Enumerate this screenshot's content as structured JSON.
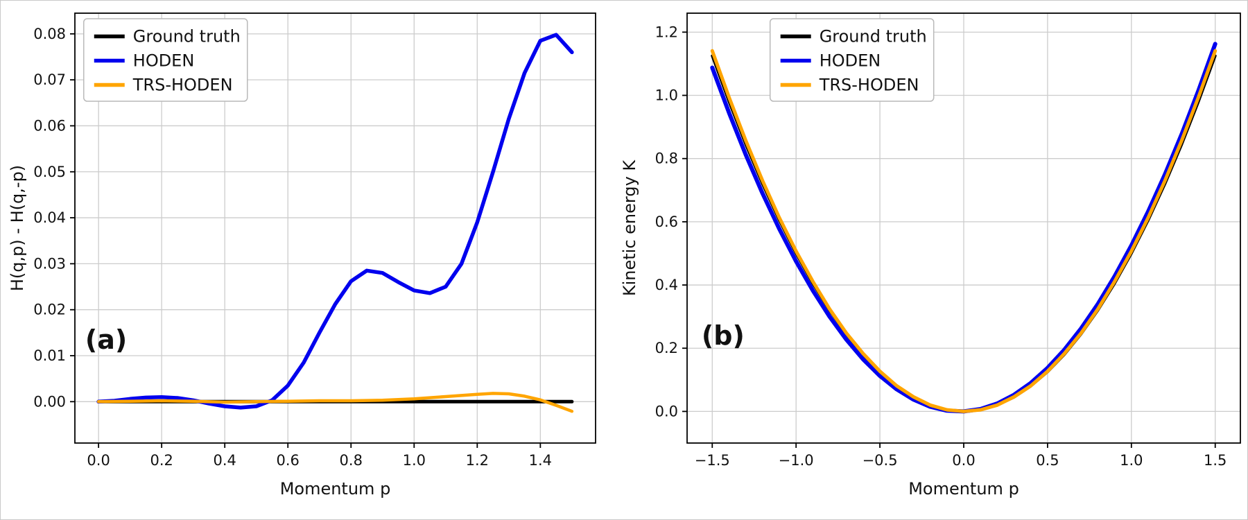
{
  "figure": {
    "background": "#ffffff",
    "grid_color": "#cccccc",
    "axes_color": "#000000",
    "legend_border_color": "#b9b9b9",
    "accent_colors": {
      "ground_truth": "#000000",
      "hoden": "#0000ee",
      "trs_hoden": "#ffa500"
    }
  },
  "chart_data": [
    {
      "type": "line",
      "name": "panel-a",
      "panel_label": "(a)",
      "xlabel": "Momentum p",
      "ylabel": "H(q,p) - H(q,-p)",
      "xlim": [
        -0.075,
        1.575
      ],
      "ylim": [
        -0.009,
        0.0845
      ],
      "xticks": [
        0.0,
        0.2,
        0.4,
        0.6,
        0.8,
        1.0,
        1.2,
        1.4
      ],
      "xtick_labels": [
        "0.0",
        "0.2",
        "0.4",
        "0.6",
        "0.8",
        "1.0",
        "1.2",
        "1.4"
      ],
      "yticks": [
        0.0,
        0.01,
        0.02,
        0.03,
        0.04,
        0.05,
        0.06,
        0.07,
        0.08
      ],
      "ytick_labels": [
        "0.00",
        "0.01",
        "0.02",
        "0.03",
        "0.04",
        "0.05",
        "0.06",
        "0.07",
        "0.08"
      ],
      "grid": true,
      "legend": {
        "position": "upper-left",
        "x_frac": 0.017,
        "y_offset": 8
      },
      "panel_label_pos": {
        "x_frac": 0.06,
        "y_frac_from_top": 0.76
      },
      "series": [
        {
          "name": "Ground truth",
          "color": "#000000",
          "width": 5,
          "points": [
            [
              0.0,
              0.0
            ],
            [
              1.5,
              0.0
            ]
          ]
        },
        {
          "name": "HODEN",
          "color": "#0000ee",
          "width": 5.5,
          "points": [
            [
              0.0,
              0.0
            ],
            [
              0.05,
              0.0002
            ],
            [
              0.1,
              0.0006
            ],
            [
              0.15,
              0.0009
            ],
            [
              0.2,
              0.001
            ],
            [
              0.25,
              0.0008
            ],
            [
              0.3,
              0.0003
            ],
            [
              0.35,
              -0.0004
            ],
            [
              0.4,
              -0.001
            ],
            [
              0.45,
              -0.0013
            ],
            [
              0.5,
              -0.001
            ],
            [
              0.55,
              0.0003
            ],
            [
              0.6,
              0.0035
            ],
            [
              0.65,
              0.0085
            ],
            [
              0.7,
              0.015
            ],
            [
              0.75,
              0.0212
            ],
            [
              0.8,
              0.0262
            ],
            [
              0.85,
              0.0285
            ],
            [
              0.9,
              0.028
            ],
            [
              0.95,
              0.026
            ],
            [
              1.0,
              0.0242
            ],
            [
              1.05,
              0.0236
            ],
            [
              1.1,
              0.025
            ],
            [
              1.15,
              0.03
            ],
            [
              1.2,
              0.039
            ],
            [
              1.25,
              0.05
            ],
            [
              1.3,
              0.0615
            ],
            [
              1.35,
              0.0715
            ],
            [
              1.4,
              0.0785
            ],
            [
              1.45,
              0.0798
            ],
            [
              1.5,
              0.076
            ]
          ]
        },
        {
          "name": "TRS-HODEN",
          "color": "#ffa500",
          "width": 4.5,
          "points": [
            [
              0.0,
              0.0
            ],
            [
              0.1,
              0.0001
            ],
            [
              0.2,
              0.0002
            ],
            [
              0.3,
              0.0001
            ],
            [
              0.4,
              -0.0001
            ],
            [
              0.5,
              0.0
            ],
            [
              0.6,
              0.0001
            ],
            [
              0.7,
              0.0002
            ],
            [
              0.8,
              0.0002
            ],
            [
              0.9,
              0.0003
            ],
            [
              1.0,
              0.0006
            ],
            [
              1.1,
              0.0011
            ],
            [
              1.2,
              0.0016
            ],
            [
              1.25,
              0.0018
            ],
            [
              1.3,
              0.0017
            ],
            [
              1.35,
              0.0012
            ],
            [
              1.4,
              0.0004
            ],
            [
              1.45,
              -0.0008
            ],
            [
              1.5,
              -0.0021
            ]
          ]
        }
      ]
    },
    {
      "type": "line",
      "name": "panel-b",
      "panel_label": "(b)",
      "xlabel": "Momentum p",
      "ylabel": "Kinetic energy K",
      "xlim": [
        -1.65,
        1.65
      ],
      "ylim": [
        -0.1,
        1.26
      ],
      "xticks": [
        -1.5,
        -1.0,
        -0.5,
        0.0,
        0.5,
        1.0,
        1.5
      ],
      "xtick_labels": [
        "−1.5",
        "−1.0",
        "−0.5",
        "0.0",
        "0.5",
        "1.0",
        "1.5"
      ],
      "yticks": [
        0.0,
        0.2,
        0.4,
        0.6,
        0.8,
        1.0,
        1.2
      ],
      "ytick_labels": [
        "0.0",
        "0.2",
        "0.4",
        "0.6",
        "0.8",
        "1.0",
        "1.2"
      ],
      "grid": true,
      "legend": {
        "position": "upper-center-left",
        "x_frac": 0.15,
        "y_offset": 8
      },
      "panel_label_pos": {
        "x_frac": 0.065,
        "y_frac_from_top": 0.75
      },
      "series": [
        {
          "name": "Ground truth",
          "color": "#000000",
          "width": 4,
          "points": [
            [
              -1.5,
              1.125
            ],
            [
              -1.4,
              0.98
            ],
            [
              -1.3,
              0.845
            ],
            [
              -1.2,
              0.72
            ],
            [
              -1.1,
              0.605
            ],
            [
              -1.0,
              0.5
            ],
            [
              -0.9,
              0.405
            ],
            [
              -0.8,
              0.32
            ],
            [
              -0.7,
              0.245
            ],
            [
              -0.6,
              0.18
            ],
            [
              -0.5,
              0.125
            ],
            [
              -0.4,
              0.08
            ],
            [
              -0.3,
              0.045
            ],
            [
              -0.2,
              0.02
            ],
            [
              -0.1,
              0.005
            ],
            [
              0.0,
              0.0
            ],
            [
              0.1,
              0.005
            ],
            [
              0.2,
              0.02
            ],
            [
              0.3,
              0.045
            ],
            [
              0.4,
              0.08
            ],
            [
              0.5,
              0.125
            ],
            [
              0.6,
              0.18
            ],
            [
              0.7,
              0.245
            ],
            [
              0.8,
              0.32
            ],
            [
              0.9,
              0.405
            ],
            [
              1.0,
              0.5
            ],
            [
              1.1,
              0.605
            ],
            [
              1.2,
              0.72
            ],
            [
              1.3,
              0.845
            ],
            [
              1.4,
              0.98
            ],
            [
              1.5,
              1.125
            ]
          ]
        },
        {
          "name": "HODEN",
          "color": "#0000ee",
          "width": 6,
          "points": [
            [
              -1.5,
              1.0875
            ],
            [
              -1.4,
              0.945
            ],
            [
              -1.3,
              0.8125
            ],
            [
              -1.2,
              0.69
            ],
            [
              -1.1,
              0.5775
            ],
            [
              -1.0,
              0.475
            ],
            [
              -0.9,
              0.3825
            ],
            [
              -0.8,
              0.3
            ],
            [
              -0.7,
              0.2275
            ],
            [
              -0.6,
              0.165
            ],
            [
              -0.5,
              0.1125
            ],
            [
              -0.4,
              0.07
            ],
            [
              -0.3,
              0.0375
            ],
            [
              -0.2,
              0.015
            ],
            [
              -0.1,
              0.0025
            ],
            [
              0.0,
              0.0
            ],
            [
              0.1,
              0.0075
            ],
            [
              0.2,
              0.025
            ],
            [
              0.3,
              0.0525
            ],
            [
              0.4,
              0.09
            ],
            [
              0.5,
              0.1375
            ],
            [
              0.6,
              0.195
            ],
            [
              0.7,
              0.2625
            ],
            [
              0.8,
              0.34
            ],
            [
              0.9,
              0.4275
            ],
            [
              1.0,
              0.525
            ],
            [
              1.1,
              0.6325
            ],
            [
              1.2,
              0.75
            ],
            [
              1.3,
              0.8775
            ],
            [
              1.4,
              1.015
            ],
            [
              1.5,
              1.1625
            ]
          ]
        },
        {
          "name": "TRS-HODEN",
          "color": "#ffa500",
          "width": 5,
          "points": [
            [
              -1.5,
              1.141
            ],
            [
              -1.4,
              0.994
            ],
            [
              -1.3,
              0.857
            ],
            [
              -1.2,
              0.73
            ],
            [
              -1.1,
              0.613
            ],
            [
              -1.0,
              0.507
            ],
            [
              -0.9,
              0.411
            ],
            [
              -0.8,
              0.324
            ],
            [
              -0.7,
              0.248
            ],
            [
              -0.6,
              0.183
            ],
            [
              -0.5,
              0.127
            ],
            [
              -0.4,
              0.081
            ],
            [
              -0.3,
              0.046
            ],
            [
              -0.2,
              0.02
            ],
            [
              -0.1,
              0.005
            ],
            [
              0.0,
              0.0
            ],
            [
              0.1,
              0.005
            ],
            [
              0.2,
              0.02
            ],
            [
              0.3,
              0.046
            ],
            [
              0.4,
              0.081
            ],
            [
              0.5,
              0.127
            ],
            [
              0.6,
              0.183
            ],
            [
              0.7,
              0.248
            ],
            [
              0.8,
              0.324
            ],
            [
              0.9,
              0.411
            ],
            [
              1.0,
              0.507
            ],
            [
              1.1,
              0.613
            ],
            [
              1.2,
              0.73
            ],
            [
              1.3,
              0.857
            ],
            [
              1.4,
              0.994
            ],
            [
              1.5,
              1.141
            ]
          ]
        }
      ]
    }
  ]
}
